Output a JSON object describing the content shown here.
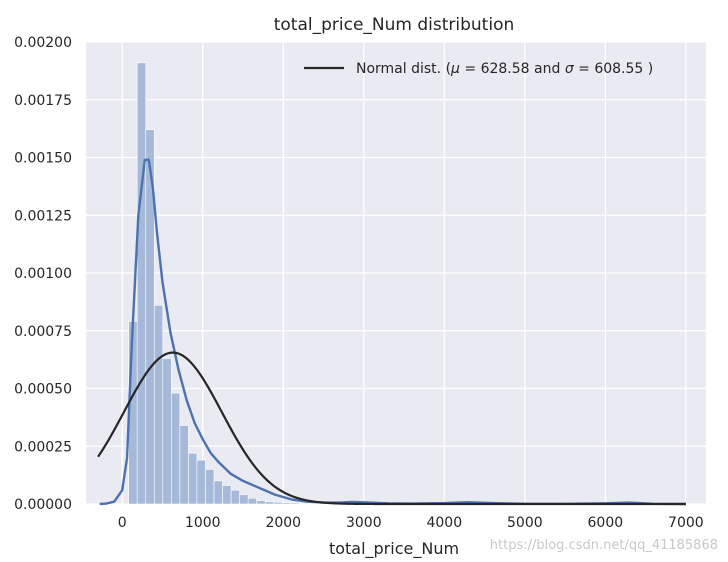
{
  "chart_data": {
    "type": "histogram",
    "title": "total_price_Num distribution",
    "xlabel": "total_price_Num",
    "ylabel": "",
    "xlim": [
      -450,
      7250
    ],
    "ylim": [
      0,
      0.002
    ],
    "x_ticks": [
      0,
      1000,
      2000,
      3000,
      4000,
      5000,
      6000,
      7000
    ],
    "x_tick_labels": [
      "0",
      "1000",
      "2000",
      "3000",
      "4000",
      "5000",
      "6000",
      "7000"
    ],
    "y_ticks": [
      0,
      0.00025,
      0.0005,
      0.00075,
      0.001,
      0.00125,
      0.0015,
      0.00175,
      0.002
    ],
    "y_tick_labels": [
      "0.00000",
      "0.00025",
      "0.00050",
      "0.00075",
      "0.00100",
      "0.00125",
      "0.00150",
      "0.00175",
      "0.00200"
    ],
    "grid": true,
    "legend_position": "top-right",
    "colors": {
      "plot_background": "#eaeaf2",
      "grid": "#ffffff",
      "histogram": "#a6b9d9",
      "kde_line": "#4c72b0",
      "normal_line": "#262626"
    },
    "histogram": {
      "bin_start": 80,
      "bin_width": 106,
      "densities": [
        0.00079,
        0.00191,
        0.00162,
        0.00086,
        0.00063,
        0.00048,
        0.00034,
        0.00022,
        0.00019,
        0.00015,
        0.0001,
        8e-05,
        6e-05,
        4e-05,
        2.5e-05,
        1.5e-05,
        1e-05,
        8e-06,
        6e-06,
        5e-06,
        3e-06,
        3e-06,
        2e-06,
        2e-06,
        1e-06
      ]
    },
    "series": [
      {
        "name": "kde",
        "x": [
          -280,
          -200,
          -100,
          0,
          60,
          120,
          200,
          280,
          330,
          380,
          430,
          500,
          600,
          700,
          800,
          900,
          1000,
          1100,
          1200,
          1350,
          1500,
          1700,
          1900,
          2100,
          2300,
          2500,
          2700,
          2850,
          3000,
          3300,
          3600,
          4000,
          4300,
          4600,
          5000,
          5500,
          6000,
          6300,
          6600,
          7000
        ],
        "y": [
          0,
          2e-06,
          1e-05,
          6e-05,
          0.0002,
          0.0007,
          0.00125,
          0.00149,
          0.00149,
          0.00137,
          0.00118,
          0.00096,
          0.00074,
          0.00058,
          0.00045,
          0.00035,
          0.00028,
          0.00022,
          0.00018,
          0.00013,
          0.0001,
          7e-05,
          4e-05,
          2e-05,
          1e-05,
          6e-06,
          6e-06,
          9e-06,
          7e-06,
          3e-06,
          2e-06,
          4e-06,
          8e-06,
          4e-06,
          1e-06,
          1e-06,
          3e-06,
          6e-06,
          1e-06,
          0
        ]
      },
      {
        "name": "Normal dist. ($\\mu=$ 628.58 and $\\sigma=$ 608.55 )",
        "type": "normal",
        "mu": 628.58,
        "sigma": 608.55,
        "x_range": [
          -300,
          7000
        ]
      }
    ],
    "legend": {
      "entry": "Normal dist. (",
      "mu_symbol": "μ",
      "eq1": " =  628.58 and ",
      "sigma_symbol": "σ",
      "eq2": " =  608.55 )"
    },
    "watermark": "https://blog.csdn.net/qq_41185868"
  }
}
